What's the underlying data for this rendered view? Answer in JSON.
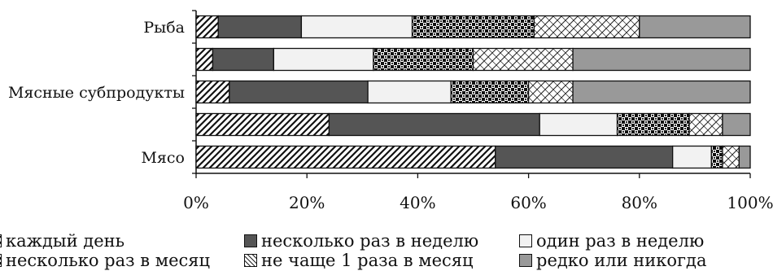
{
  "chart_data": {
    "type": "bar",
    "orientation": "horizontal",
    "stacked": "percent",
    "categories": [
      "Рыба",
      "",
      "Мясные субпродукты",
      "",
      "Мясо"
    ],
    "xlim": [
      0,
      100
    ],
    "x_ticks": [
      "0%",
      "20%",
      "40%",
      "60%",
      "80%",
      "100%"
    ],
    "legend_position": "bottom",
    "series": [
      {
        "name": "каждый день",
        "pattern": "diagonal-stripes",
        "color": "#ffffff",
        "values": [
          4,
          3,
          6,
          24,
          54
        ]
      },
      {
        "name": "несколько раз в неделю",
        "pattern": "solid",
        "color": "#555555",
        "values": [
          15,
          11,
          25,
          38,
          32
        ]
      },
      {
        "name": "один раз в неделю",
        "pattern": "solid",
        "color": "#f2f2f2",
        "values": [
          20,
          18,
          15,
          14,
          7
        ]
      },
      {
        "name": "несколько раз в месяц",
        "pattern": "checkered",
        "color": "#222222",
        "values": [
          22,
          18,
          14,
          13,
          2
        ]
      },
      {
        "name": "не чаще 1 раза в месяц",
        "pattern": "crosshatch",
        "color": "#ffffff",
        "values": [
          19,
          18,
          8,
          6,
          3
        ]
      },
      {
        "name": "редко или никогда",
        "pattern": "solid",
        "color": "#999999",
        "values": [
          20,
          32,
          32,
          5,
          2
        ]
      }
    ]
  },
  "legend": {
    "items": [
      {
        "label": "каждый день"
      },
      {
        "label": "несколько раз в неделю"
      },
      {
        "label": "один раз в неделю"
      },
      {
        "label": "несколько раз в месяц"
      },
      {
        "label": "не чаще 1 раза в месяц"
      },
      {
        "label": "редко или никогда"
      }
    ]
  }
}
